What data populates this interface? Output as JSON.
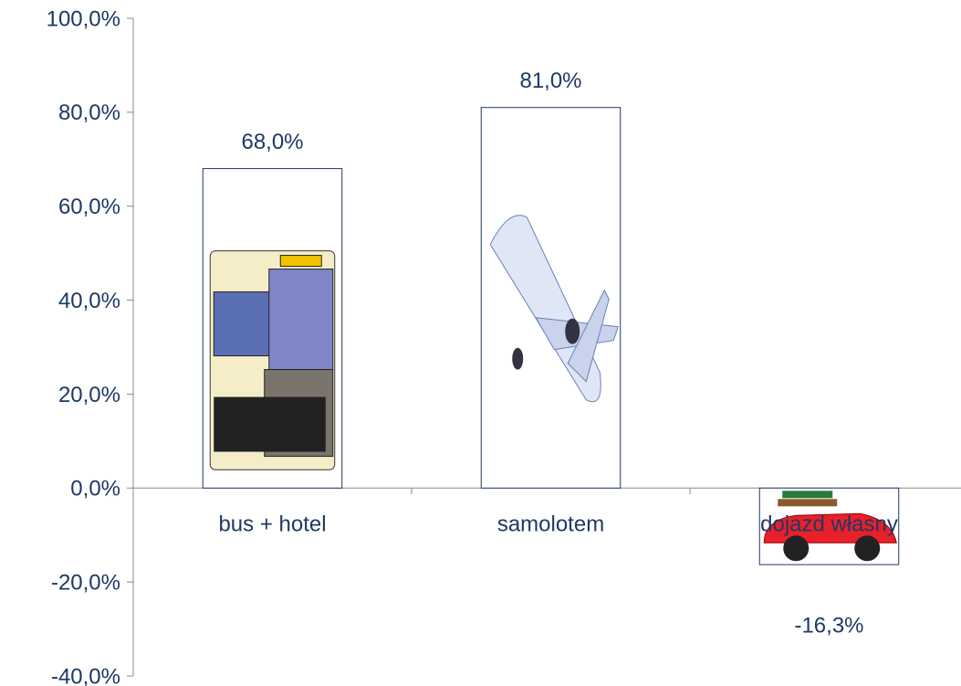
{
  "chart_data": {
    "type": "bar",
    "categories": [
      "bus + hotel",
      "samolotem",
      "dojazd własny"
    ],
    "values": [
      68,
      81,
      -16.3
    ],
    "value_labels": [
      "68,0%",
      "81,0%",
      "-16,3%"
    ],
    "ylim": [
      -40,
      100
    ],
    "yticks": [
      {
        "value": -40,
        "label": "-40,0%"
      },
      {
        "value": -20,
        "label": "-20,0%"
      },
      {
        "value": 0,
        "label": "0,0%"
      },
      {
        "value": 20,
        "label": "20,0%"
      },
      {
        "value": 40,
        "label": "40,0%"
      },
      {
        "value": 60,
        "label": "60,0%"
      },
      {
        "value": 80,
        "label": "80,0%"
      },
      {
        "value": 100,
        "label": "100,0%"
      }
    ],
    "color": "#1f3864"
  }
}
